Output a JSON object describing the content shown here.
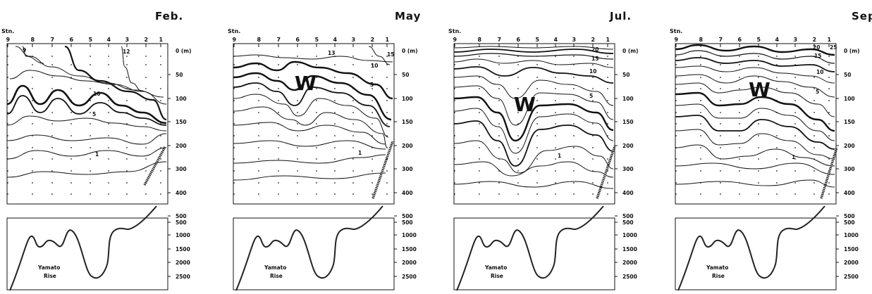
{
  "station_label": "Stn.",
  "depth_unit": "0  (m)",
  "stations": [
    "9",
    "8",
    "7",
    "6",
    "5",
    "4",
    "3",
    "2",
    "1"
  ],
  "upper_depth_ticks": [
    "50",
    "100",
    "150",
    "200",
    "300",
    "400",
    "500"
  ],
  "lower_depth_ticks": [
    "500",
    "1000",
    "1500",
    "2000",
    "2500"
  ],
  "feature_label_1": "Yamato",
  "feature_label_2": "Rise",
  "panels": [
    {
      "month": "Feb.",
      "labels": [
        "9",
        "12",
        "10",
        "5",
        "1"
      ],
      "warm": ""
    },
    {
      "month": "May",
      "labels": [
        "13",
        "15",
        "10",
        "5",
        "1"
      ],
      "warm": "W"
    },
    {
      "month": "Jul.",
      "labels": [
        "20",
        "15",
        "10",
        "5",
        "1"
      ],
      "warm": "W"
    },
    {
      "month": "Sep.",
      "labels": [
        "20",
        "25",
        "15",
        "10",
        "5",
        "1"
      ],
      "warm": "W"
    }
  ]
}
